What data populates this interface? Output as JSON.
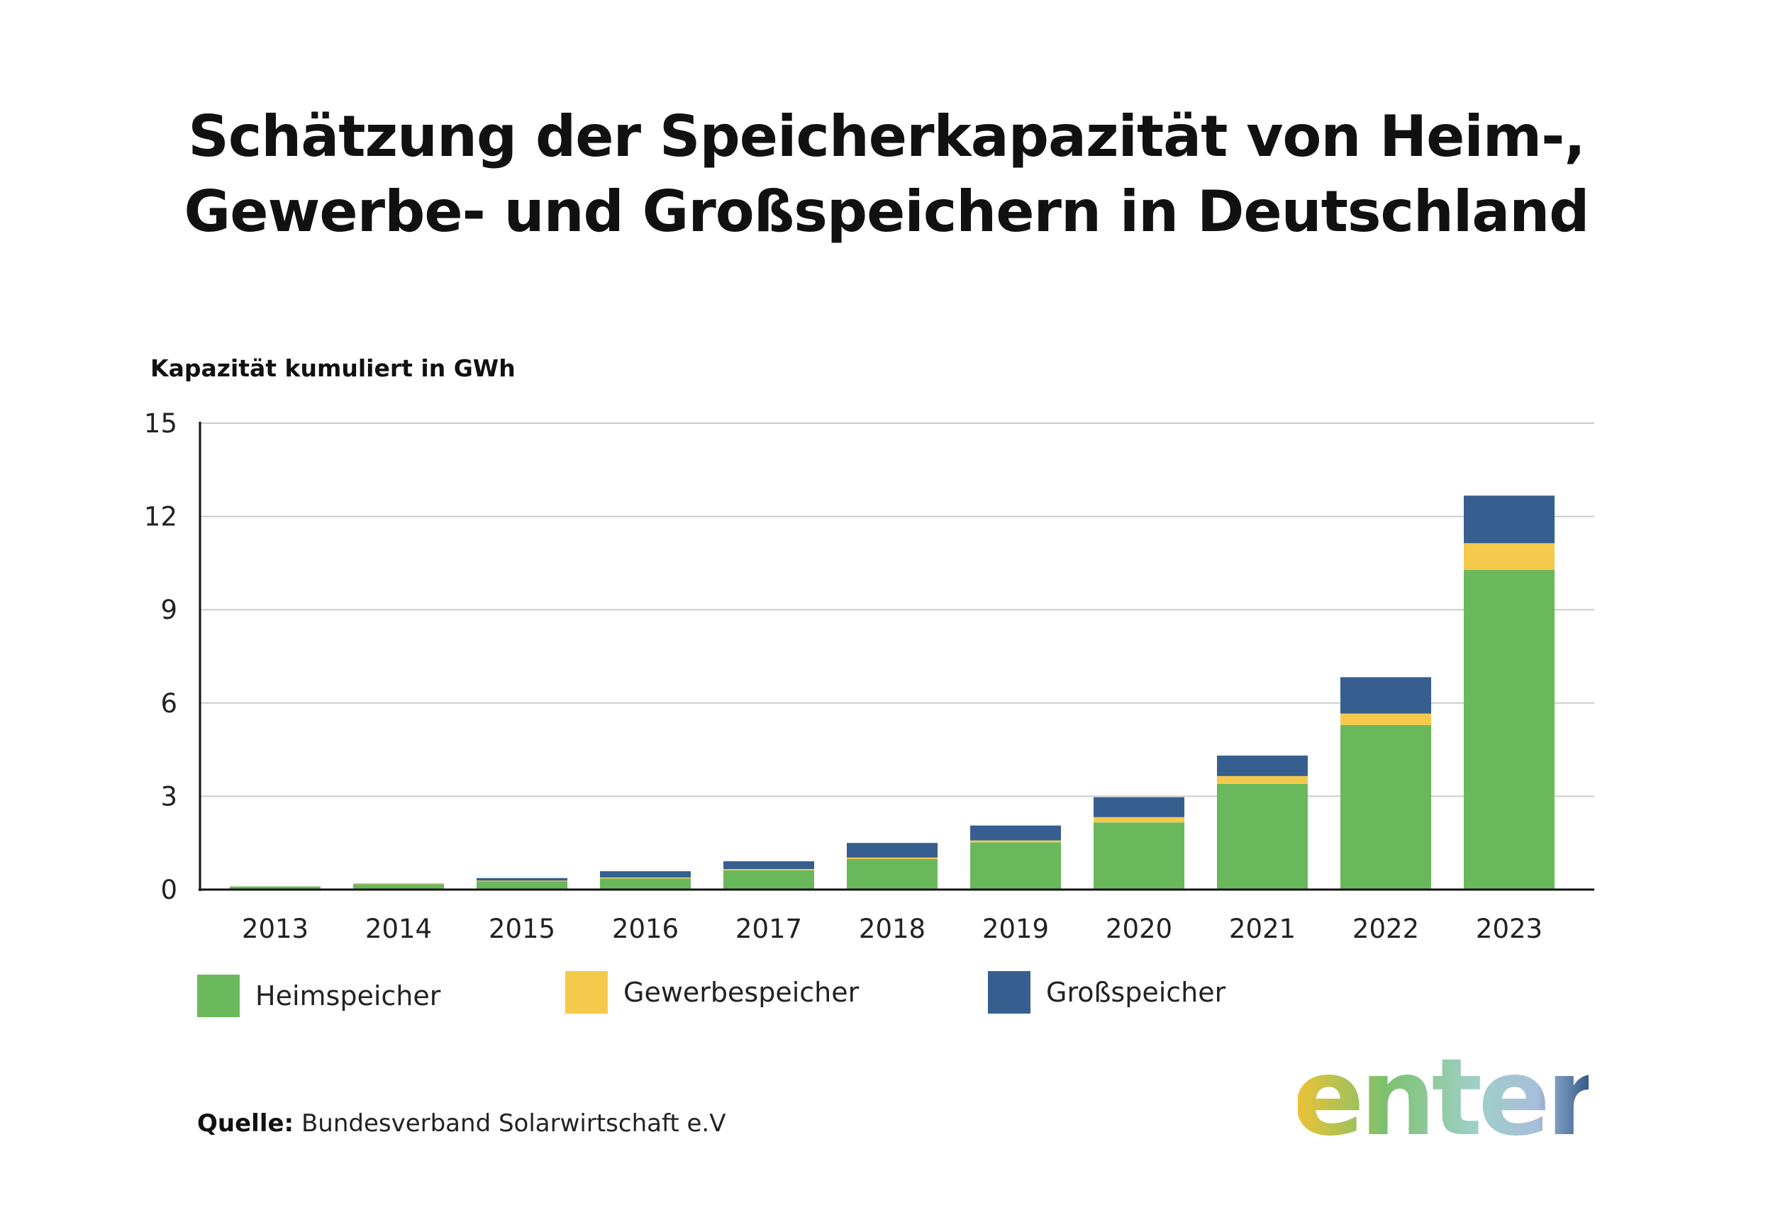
{
  "title_lines": [
    "Schätzung der Speicherkapazität von Heim-,",
    "Gewerbe- und Großspeichern in Deutschland"
  ],
  "colors": {
    "heim": "#6ab85c",
    "gewerbe": "#f5c94b",
    "gross": "#365f8f",
    "grid": "#cccccc",
    "axis": "#111111"
  },
  "chart_data": {
    "type": "bar",
    "stacked": true,
    "title": "Schätzung der Speicherkapazität von Heim-, Gewerbe- und Großspeichern in Deutschland",
    "ylabel": "Kapazität kumuliert in GWh",
    "xlabel": "",
    "ylim": [
      0,
      15
    ],
    "yticks": [
      0,
      3,
      6,
      9,
      12,
      15
    ],
    "grid": true,
    "legend_position": "bottom",
    "categories": [
      "2013",
      "2014",
      "2015",
      "2016",
      "2017",
      "2018",
      "2019",
      "2020",
      "2021",
      "2022",
      "2023"
    ],
    "series": [
      {
        "name": "Heimspeicher",
        "color_key": "heim",
        "values": [
          0.1,
          0.17,
          0.27,
          0.36,
          0.62,
          0.98,
          1.52,
          2.16,
          3.4,
          5.29,
          10.28
        ]
      },
      {
        "name": "Gewerbespeicher",
        "color_key": "gewerbe",
        "values": [
          0.0,
          0.01,
          0.02,
          0.03,
          0.04,
          0.05,
          0.06,
          0.17,
          0.25,
          0.37,
          0.86
        ]
      },
      {
        "name": "Großspeicher",
        "color_key": "gross",
        "values": [
          0.0,
          0.01,
          0.08,
          0.2,
          0.25,
          0.47,
          0.48,
          0.64,
          0.66,
          1.17,
          1.53
        ]
      }
    ]
  },
  "source": {
    "label": "Quelle:",
    "text": " Bundesverband Solarwirtschaft e.V"
  },
  "logo": {
    "text": "enter"
  }
}
